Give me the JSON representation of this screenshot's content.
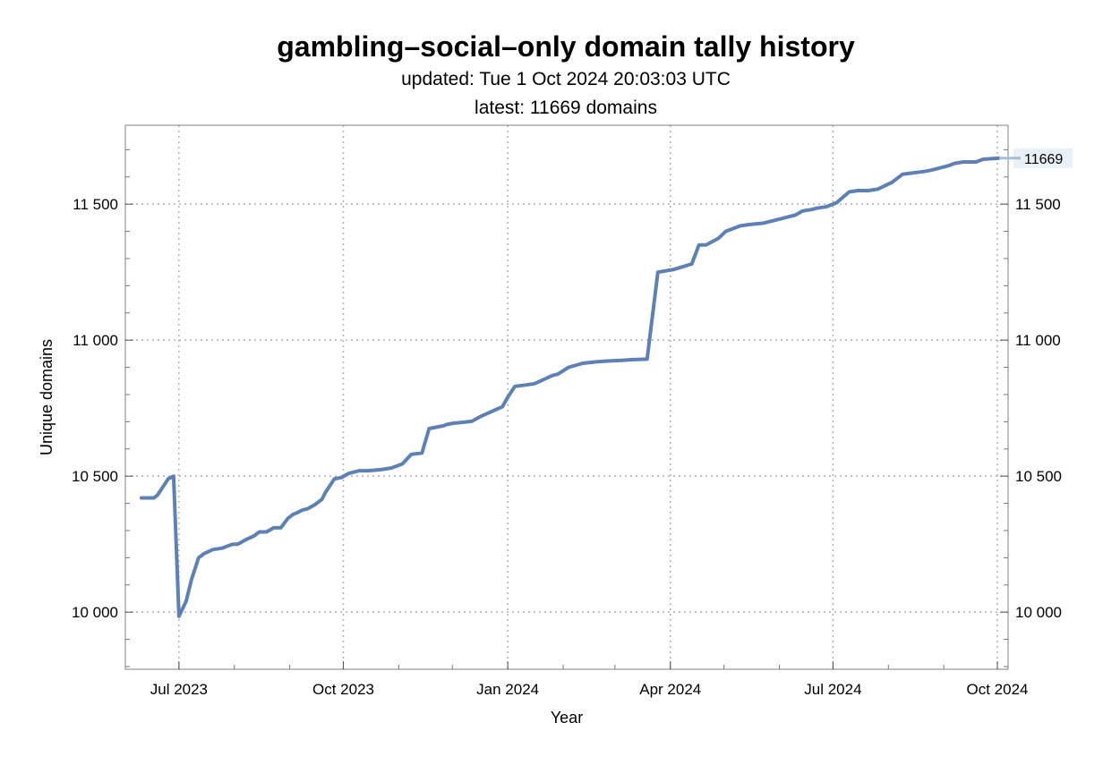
{
  "chart_data": {
    "type": "line",
    "title": "gambling–social–only domain tally history",
    "subtitle_updated": "updated: Tue 1 Oct 2024 20:03:03 UTC",
    "subtitle_latest": "latest: 11669 domains",
    "xlabel": "Year",
    "ylabel": "Unique domains",
    "xlim": [
      "2023-06-01",
      "2024-10-07"
    ],
    "ylim": [
      9790,
      11790
    ],
    "grid": true,
    "x_ticks": [
      {
        "date": "2023-07-01",
        "label": "Jul 2023"
      },
      {
        "date": "2023-10-01",
        "label": "Oct 2023"
      },
      {
        "date": "2024-01-01",
        "label": "Jan 2024"
      },
      {
        "date": "2024-04-01",
        "label": "Apr 2024"
      },
      {
        "date": "2024-07-01",
        "label": "Jul 2024"
      },
      {
        "date": "2024-10-01",
        "label": "Oct 2024"
      }
    ],
    "y_ticks": [
      {
        "value": 10000,
        "label": "10 000"
      },
      {
        "value": 10500,
        "label": "10 500"
      },
      {
        "value": 11000,
        "label": "11 000"
      },
      {
        "value": 11500,
        "label": "11 500"
      }
    ],
    "end_label": "11669",
    "end_value": 11669,
    "line_color": "#5e81b5",
    "series": [
      {
        "x": [
          "2023-06-10",
          "2023-06-17",
          "2023-06-19",
          "2023-06-23",
          "2023-06-25",
          "2023-06-28",
          "2023-07-01",
          "2023-07-05",
          "2023-07-08",
          "2023-07-12",
          "2023-07-15",
          "2023-07-20",
          "2023-07-25",
          "2023-07-31",
          "2023-08-03",
          "2023-08-07",
          "2023-08-12",
          "2023-08-15",
          "2023-08-19",
          "2023-08-23",
          "2023-08-27",
          "2023-08-31",
          "2023-09-01",
          "2023-09-03",
          "2023-09-05",
          "2023-09-08",
          "2023-09-11",
          "2023-09-15",
          "2023-09-19",
          "2023-09-21",
          "2023-09-26",
          "2023-09-30",
          "2023-10-04",
          "2023-10-07",
          "2023-10-10",
          "2023-10-15",
          "2023-10-23",
          "2023-10-28",
          "2023-11-03",
          "2023-11-08",
          "2023-11-14",
          "2023-11-18",
          "2023-11-26",
          "2023-11-28",
          "2023-12-02",
          "2023-12-07",
          "2023-12-12",
          "2023-12-17",
          "2023-12-29",
          "2024-01-01",
          "2024-01-05",
          "2024-01-11",
          "2024-01-16",
          "2024-01-26",
          "2024-01-29",
          "2024-02-04",
          "2024-02-12",
          "2024-02-19",
          "2024-02-23",
          "2024-02-28",
          "2024-03-05",
          "2024-03-10",
          "2024-03-19",
          "2024-03-25",
          "2024-04-03",
          "2024-04-08",
          "2024-04-13",
          "2024-04-17",
          "2024-04-21",
          "2024-04-28",
          "2024-05-02",
          "2024-05-10",
          "2024-05-15",
          "2024-05-23",
          "2024-06-01",
          "2024-06-10",
          "2024-06-14",
          "2024-06-19",
          "2024-06-22",
          "2024-06-27",
          "2024-07-03",
          "2024-07-10",
          "2024-07-15",
          "2024-07-21",
          "2024-07-26",
          "2024-08-03",
          "2024-08-09",
          "2024-08-15",
          "2024-08-21",
          "2024-08-25",
          "2024-08-31",
          "2024-09-03",
          "2024-09-07",
          "2024-09-12",
          "2024-09-19",
          "2024-09-23",
          "2024-10-02"
        ],
        "values": [
          10420,
          10420,
          10430,
          10470,
          10490,
          10500,
          9985,
          10040,
          10120,
          10200,
          10215,
          10230,
          10235,
          10250,
          10250,
          10265,
          10280,
          10295,
          10295,
          10310,
          10310,
          10345,
          10350,
          10360,
          10365,
          10375,
          10380,
          10395,
          10415,
          10440,
          10490,
          10495,
          10510,
          10515,
          10520,
          10520,
          10525,
          10530,
          10545,
          10580,
          10585,
          10675,
          10685,
          10690,
          10695,
          10698,
          10702,
          10720,
          10755,
          10790,
          10830,
          10835,
          10840,
          10870,
          10875,
          10900,
          10915,
          10920,
          10922,
          10924,
          10926,
          10928,
          10930,
          11250,
          11260,
          11270,
          11280,
          11350,
          11350,
          11375,
          11400,
          11420,
          11425,
          11430,
          11445,
          11460,
          11475,
          11480,
          11485,
          11490,
          11505,
          11545,
          11550,
          11550,
          11555,
          11580,
          11610,
          11615,
          11620,
          11625,
          11635,
          11640,
          11650,
          11655,
          11655,
          11665,
          11669
        ]
      }
    ]
  }
}
